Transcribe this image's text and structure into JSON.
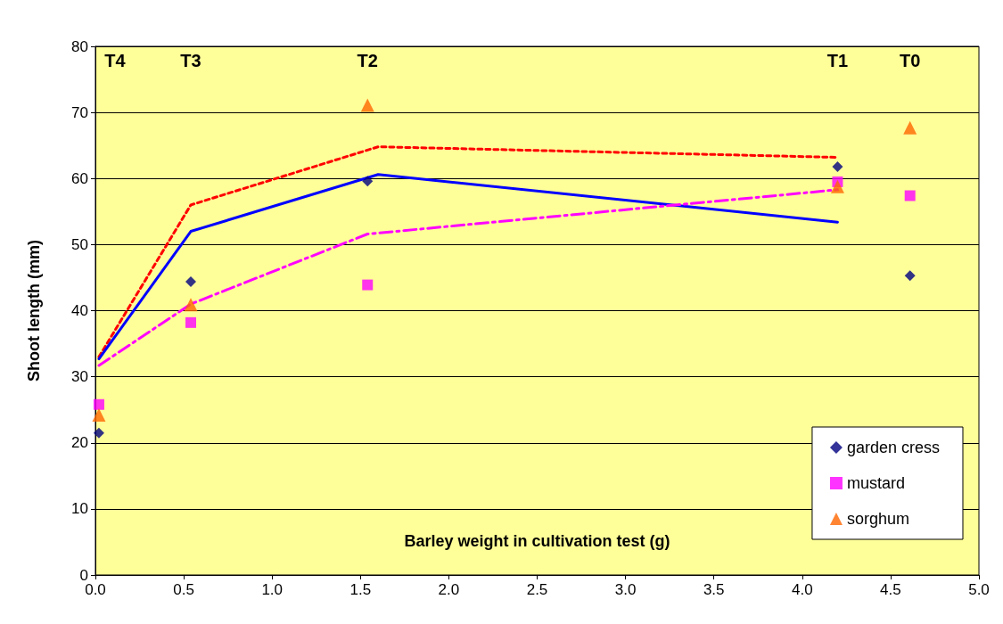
{
  "chart_data": {
    "type": "scatter",
    "xlabel": "Barley weight in cultivation test (g)",
    "ylabel": "Shoot length (mm)",
    "xlim": [
      0,
      5
    ],
    "xticks": [
      {
        "value": 0,
        "label": "0.0"
      },
      {
        "value": 0.5,
        "label": "0.5"
      },
      {
        "value": 1,
        "label": "1.0"
      },
      {
        "value": 1.5,
        "label": "1.5"
      },
      {
        "value": 2,
        "label": "2.0"
      },
      {
        "value": 2.5,
        "label": "2.5"
      },
      {
        "value": 3,
        "label": "3.0"
      },
      {
        "value": 3.5,
        "label": "3.5"
      },
      {
        "value": 4,
        "label": "4.0"
      },
      {
        "value": 4.5,
        "label": "4.5"
      },
      {
        "value": 5,
        "label": "5.0"
      }
    ],
    "ylim": [
      0,
      80
    ],
    "yticks": [
      0,
      10,
      20,
      30,
      40,
      50,
      60,
      70,
      80
    ],
    "grid": "y",
    "legend": "bottom right",
    "x": [
      0.02,
      0.54,
      1.54,
      4.2,
      4.61
    ],
    "series": [
      {
        "name": "garden cress",
        "color": "#000080",
        "marker": "diamond",
        "values": [
          21.5,
          44.4,
          59.6,
          61.8,
          45.3
        ]
      },
      {
        "name": "mustard",
        "color": "#ff00ff",
        "marker": "square",
        "values": [
          25.8,
          38.2,
          43.9,
          59.5,
          57.4
        ]
      },
      {
        "name": "sorghum",
        "color": "#ff6600",
        "marker": "triangle",
        "values": [
          24.2,
          40.9,
          71.1,
          58.8,
          67.7
        ]
      },
      {
        "type": "line",
        "color": "#ff0000",
        "line_style": "dotted",
        "marker": "none",
        "x": [
          0.02,
          0.54,
          1.6,
          4.2
        ],
        "values": [
          33,
          56,
          64.8,
          63.2
        ]
      },
      {
        "type": "line",
        "color": "#0000ff",
        "line_style": "solid",
        "marker": "none",
        "x": [
          0.02,
          0.54,
          1.6,
          4.2
        ],
        "values": [
          32.7,
          52,
          60.6,
          53.4
        ]
      },
      {
        "type": "line",
        "color": "#ff00ff",
        "line_style": "dashed",
        "marker": "none",
        "x": [
          0.02,
          0.54,
          1.54,
          4.2
        ],
        "values": [
          31.7,
          41,
          51.6,
          58.3
        ]
      }
    ],
    "annotations": [
      "T4",
      "T3",
      "T2",
      "T1",
      "T0"
    ]
  }
}
